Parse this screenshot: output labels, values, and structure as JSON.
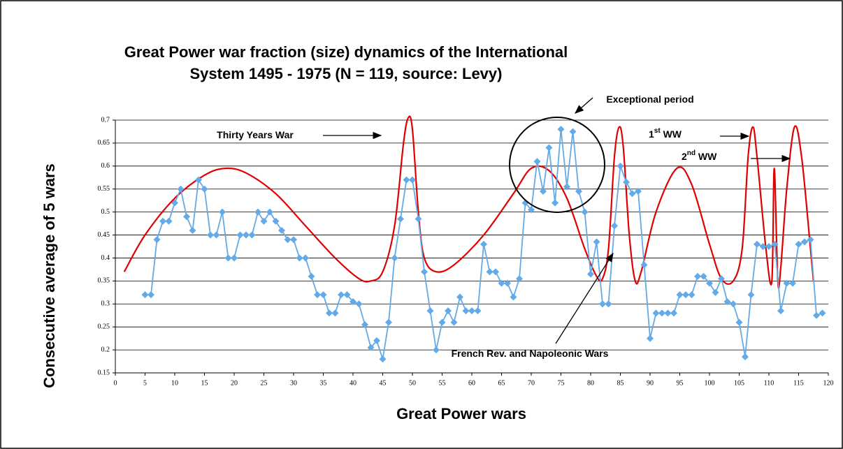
{
  "chart_data": {
    "type": "line",
    "title": [
      "Great Power war fraction (size) dynamics of the International",
      "System 1495 - 1975 (N = 119, source: Levy)"
    ],
    "x_label": "Great Power wars",
    "y_label": "Consecutive average of 5 wars",
    "xlim": [
      0,
      120
    ],
    "xticks": [
      0,
      5,
      10,
      15,
      20,
      25,
      30,
      35,
      40,
      45,
      50,
      55,
      60,
      65,
      70,
      75,
      80,
      85,
      90,
      95,
      100,
      105,
      110,
      115,
      120
    ],
    "ylim": [
      0.15,
      0.7
    ],
    "yticks": [
      0.15,
      0.2,
      0.25,
      0.3,
      0.35,
      0.4,
      0.45,
      0.5,
      0.55,
      0.6,
      0.65,
      0.7
    ],
    "grid": true,
    "series": [
      {
        "color": "#e00000",
        "smooth": true,
        "x": [
          1.5,
          5,
          10,
          15,
          18.5,
          22,
          27,
          32,
          37,
          41,
          43,
          45,
          47,
          48.5,
          49.3,
          50,
          51,
          52,
          54,
          57,
          62,
          67,
          70,
          73,
          76,
          79,
          81,
          82,
          83,
          84,
          84.8,
          85.5,
          86.5,
          87.5,
          88.5,
          91,
          94.5,
          97,
          100,
          102,
          104,
          105.5,
          106.5,
          107.3,
          108,
          109.5,
          110.5,
          110.9,
          111.5,
          112,
          113,
          114.3,
          115.5,
          117,
          117.5
        ],
        "values": [
          0.37,
          0.45,
          0.53,
          0.58,
          0.595,
          0.585,
          0.54,
          0.47,
          0.4,
          0.355,
          0.35,
          0.37,
          0.47,
          0.65,
          0.705,
          0.68,
          0.5,
          0.4,
          0.37,
          0.385,
          0.45,
          0.54,
          0.595,
          0.59,
          0.53,
          0.42,
          0.36,
          0.355,
          0.42,
          0.62,
          0.685,
          0.64,
          0.45,
          0.35,
          0.37,
          0.5,
          0.595,
          0.56,
          0.43,
          0.355,
          0.35,
          0.42,
          0.62,
          0.685,
          0.62,
          0.42,
          0.35,
          0.595,
          0.35,
          0.38,
          0.55,
          0.685,
          0.62,
          0.42,
          0.35
        ]
      },
      {
        "color": "#62aae8",
        "markers": true,
        "x": [
          5,
          6,
          7,
          8,
          9,
          10,
          11,
          12,
          13,
          14,
          15,
          16,
          17,
          18,
          19,
          20,
          21,
          22,
          23,
          24,
          25,
          26,
          27,
          28,
          29,
          30,
          31,
          32,
          33,
          34,
          35,
          36,
          37,
          38,
          39,
          40,
          41,
          42,
          43,
          44,
          45,
          46,
          47,
          48,
          49,
          50,
          51,
          52,
          53,
          54,
          55,
          56,
          57,
          58,
          59,
          60,
          61,
          62,
          63,
          64,
          65,
          66,
          67,
          68,
          69,
          70,
          71,
          72,
          73,
          74,
          75,
          76,
          77,
          78,
          79,
          80,
          81,
          82,
          83,
          84,
          85,
          86,
          87,
          88,
          89,
          90,
          91,
          92,
          93,
          94,
          95,
          96,
          97,
          98,
          99,
          100,
          101,
          102,
          103,
          104,
          105,
          106,
          107,
          108,
          109,
          110,
          111,
          112,
          113,
          114,
          115,
          116,
          117,
          118,
          119
        ],
        "values": [
          0.32,
          0.32,
          0.44,
          0.48,
          0.48,
          0.52,
          0.55,
          0.49,
          0.46,
          0.57,
          0.55,
          0.45,
          0.45,
          0.5,
          0.4,
          0.4,
          0.45,
          0.45,
          0.45,
          0.5,
          0.48,
          0.5,
          0.48,
          0.46,
          0.44,
          0.44,
          0.4,
          0.4,
          0.36,
          0.32,
          0.32,
          0.28,
          0.28,
          0.32,
          0.32,
          0.305,
          0.3,
          0.255,
          0.205,
          0.22,
          0.18,
          0.26,
          0.4,
          0.485,
          0.57,
          0.57,
          0.485,
          0.37,
          0.285,
          0.2,
          0.26,
          0.285,
          0.26,
          0.315,
          0.285,
          0.285,
          0.285,
          0.43,
          0.37,
          0.37,
          0.345,
          0.345,
          0.315,
          0.355,
          0.52,
          0.505,
          0.61,
          0.545,
          0.64,
          0.52,
          0.68,
          0.555,
          0.675,
          0.545,
          0.5,
          0.365,
          0.435,
          0.3,
          0.3,
          0.47,
          0.6,
          0.565,
          0.54,
          0.545,
          0.385,
          0.225,
          0.28,
          0.28,
          0.28,
          0.28,
          0.32,
          0.32,
          0.32,
          0.36,
          0.36,
          0.345,
          0.325,
          0.355,
          0.305,
          0.3,
          0.26,
          0.185,
          0.32,
          0.43,
          0.425,
          0.425,
          0.43,
          0.285,
          0.345,
          0.345,
          0.43,
          0.435,
          0.44,
          0.275,
          0.28
        ]
      }
    ],
    "annotations": [
      {
        "text": "Thirty Years War"
      },
      {
        "text": "Exceptional period"
      },
      {
        "text": "1",
        "sup": "st",
        "after": " WW"
      },
      {
        "text": "2",
        "sup": "nd",
        "after": " WW"
      },
      {
        "text": "French Rev. and Napoleonic Wars"
      }
    ]
  }
}
